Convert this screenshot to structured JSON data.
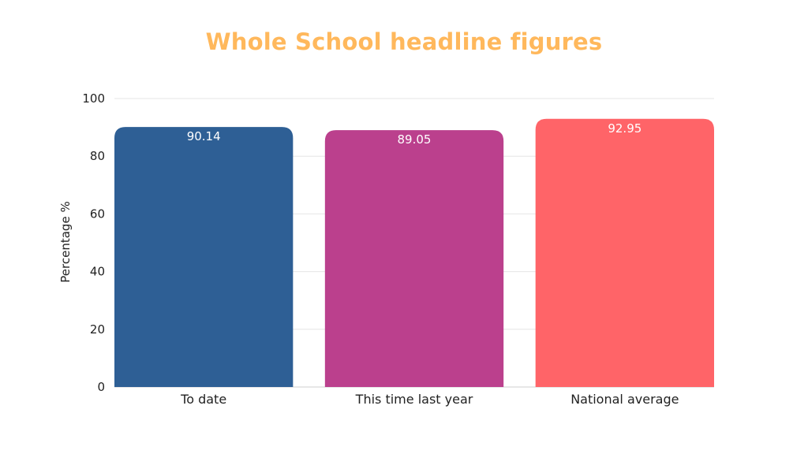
{
  "chart_data": {
    "type": "bar",
    "title": "Whole School headline figures",
    "xlabel": "",
    "ylabel": "Percentage %",
    "ylim": [
      0,
      100
    ],
    "yticks": [
      0,
      20,
      40,
      60,
      80,
      100
    ],
    "grid": true,
    "categories": [
      "To date",
      "This time last year",
      "National average"
    ],
    "values": [
      90.14,
      89.05,
      92.95
    ],
    "value_labels": [
      "90.14",
      "89.05",
      "92.95"
    ],
    "colors": [
      "#2e5f95",
      "#bb408d",
      "#ff6468"
    ],
    "title_color": "#ffb85c"
  }
}
